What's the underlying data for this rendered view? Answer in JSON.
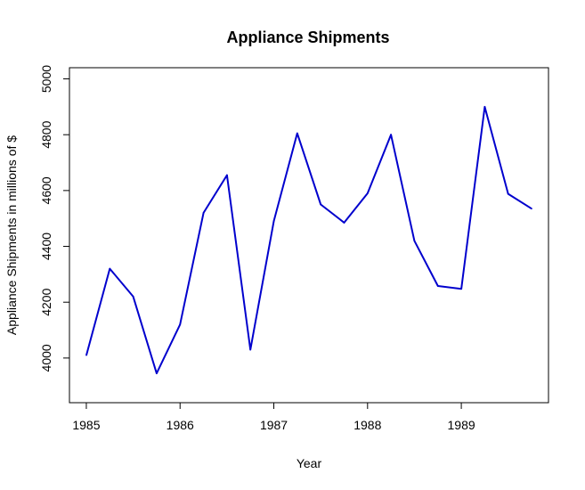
{
  "chart_data": {
    "type": "line",
    "title": "Appliance Shipments",
    "xlabel": "Year",
    "ylabel": "Appliance Shipments in millions of $",
    "xlim": [
      1984.82,
      1989.93
    ],
    "ylim": [
      3840,
      5040
    ],
    "x_ticks": [
      1985,
      1986,
      1987,
      1988,
      1989
    ],
    "y_ticks": [
      4000,
      4200,
      4400,
      4600,
      4800,
      5000
    ],
    "grid": false,
    "legend": "none",
    "series": [
      {
        "color": "#0000cd",
        "x": [
          1985.0,
          1985.25,
          1985.5,
          1985.75,
          1986.0,
          1986.25,
          1986.5,
          1986.75,
          1987.0,
          1987.25,
          1987.5,
          1987.75,
          1988.0,
          1988.25,
          1988.5,
          1988.75,
          1989.0,
          1989.25,
          1989.5,
          1989.75
        ],
        "y": [
          4010,
          4320,
          4220,
          3945,
          4120,
          4520,
          4655,
          4030,
          4490,
          4805,
          4550,
          4485,
          4590,
          4800,
          4420,
          4258,
          4248,
          4900,
          4588,
          4535
        ]
      }
    ]
  }
}
